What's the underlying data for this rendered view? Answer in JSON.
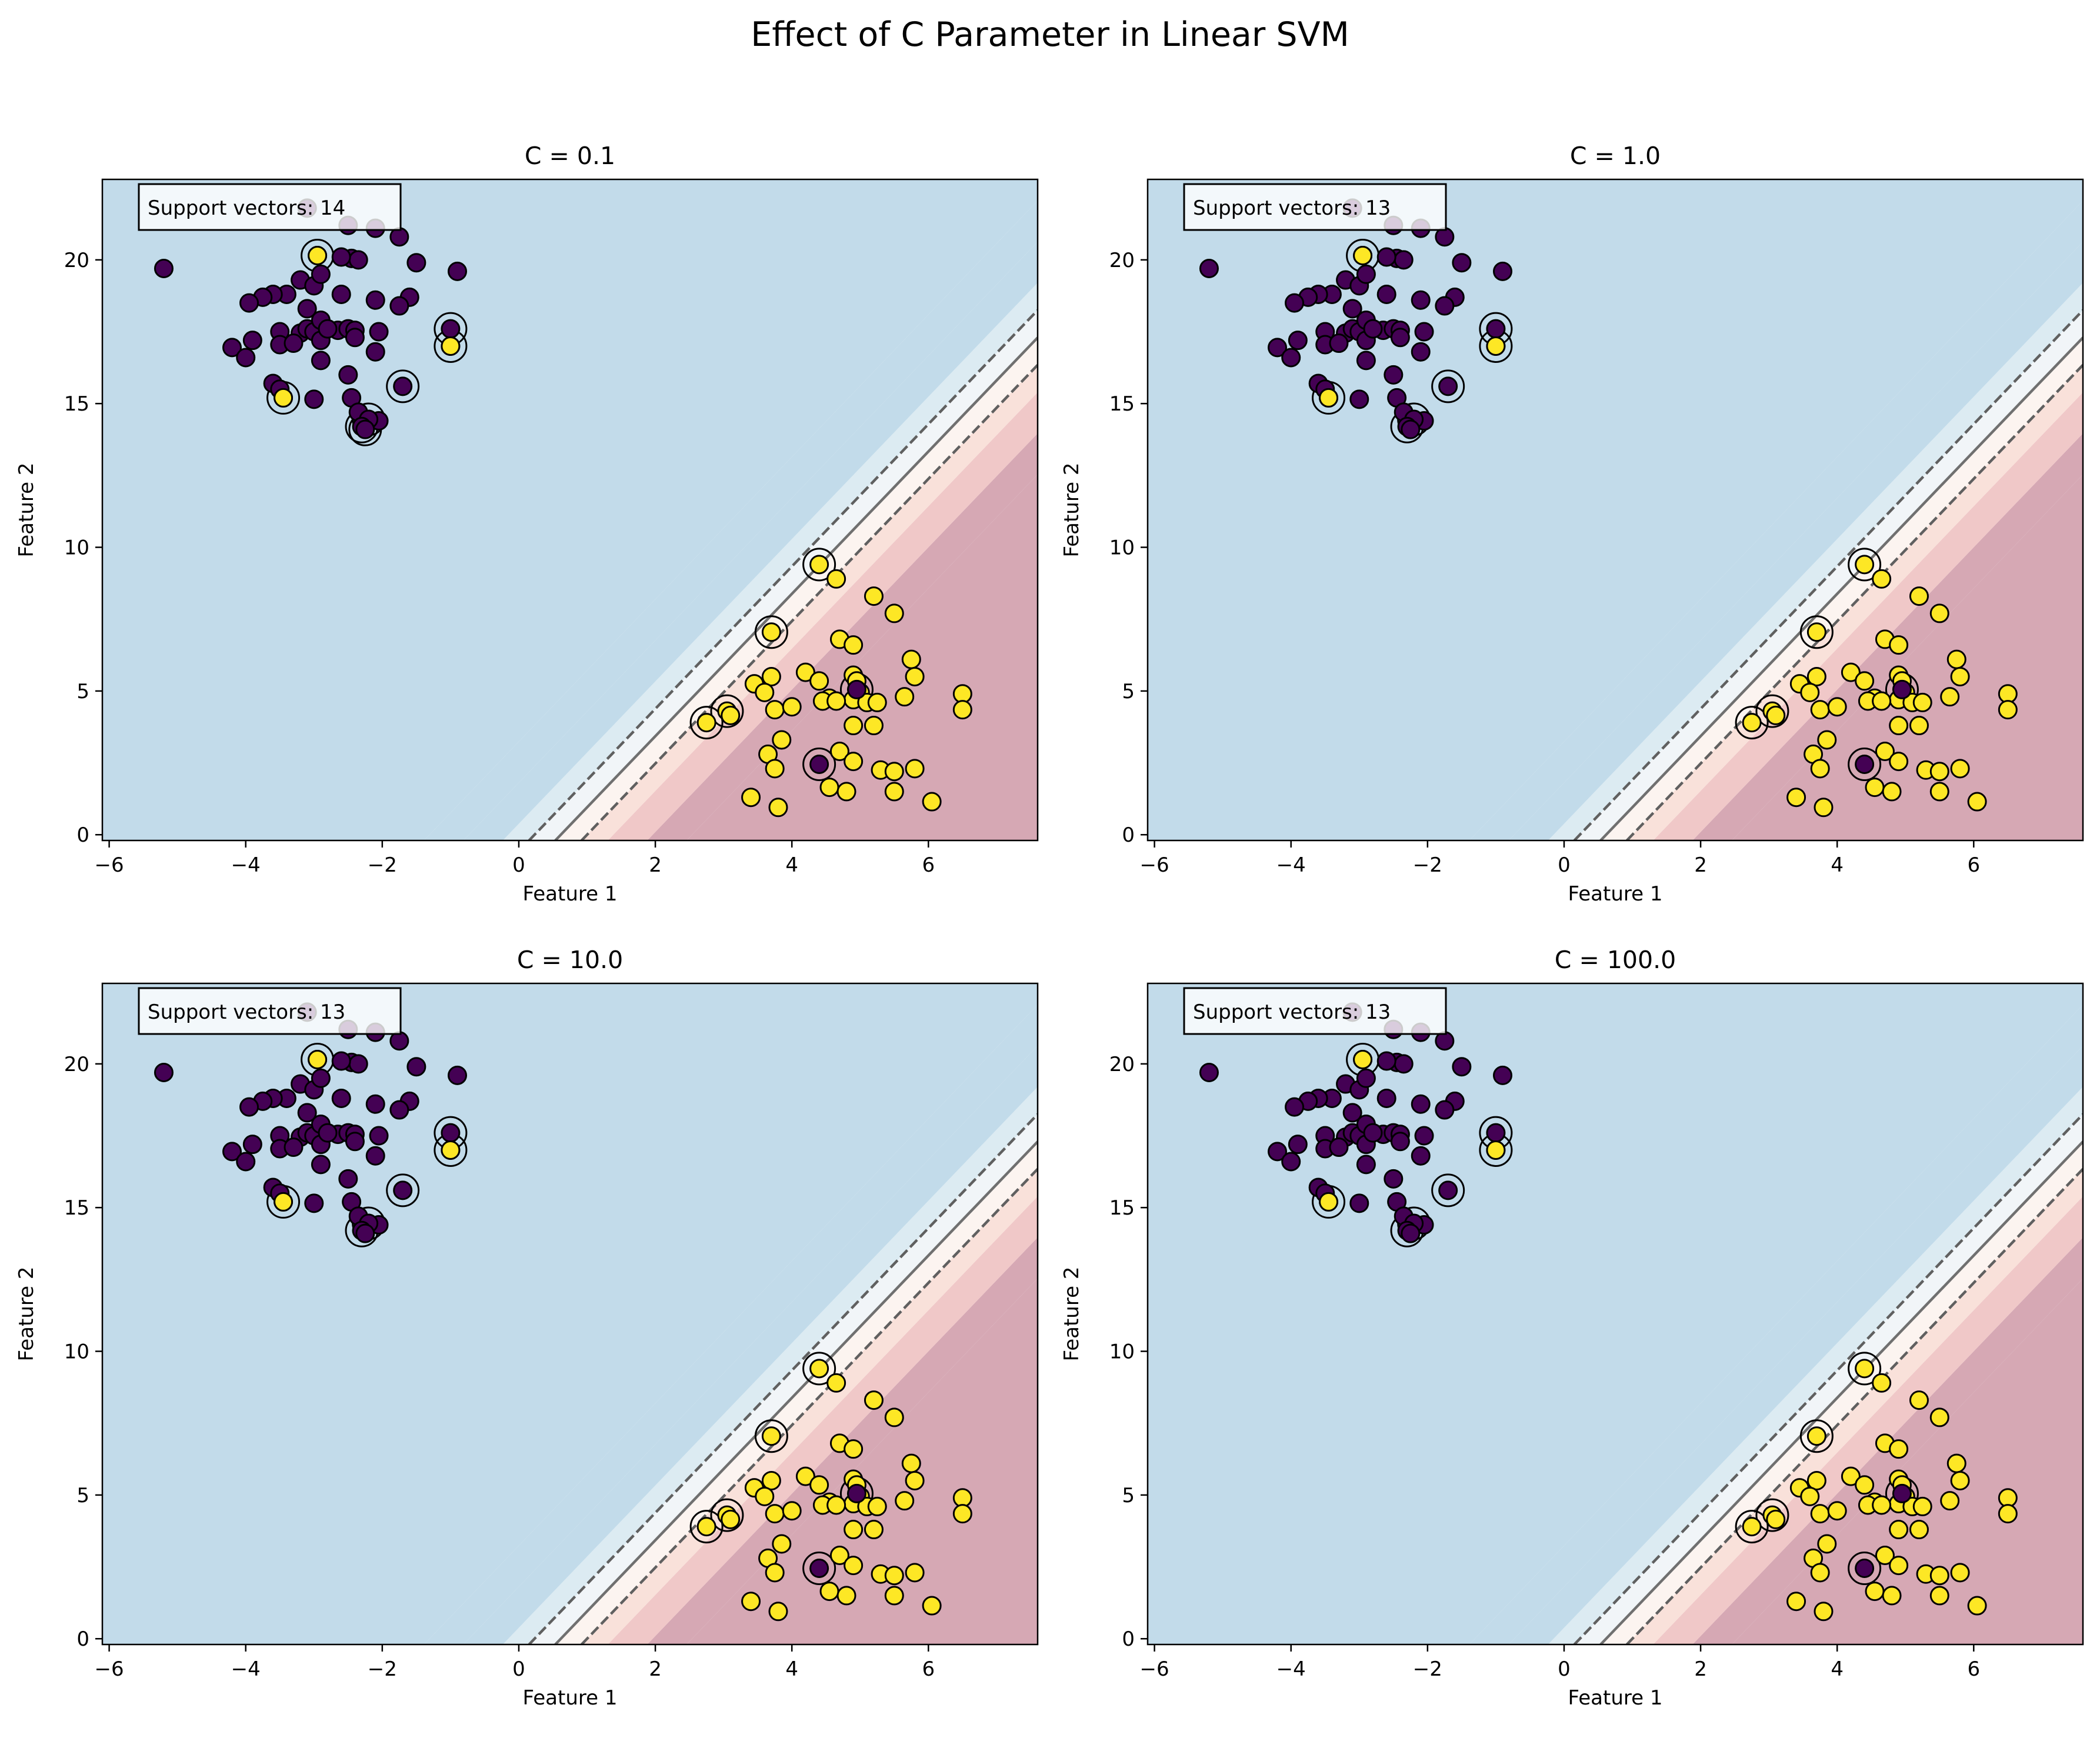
{
  "figure": {
    "title": "Effect of C Parameter in Linear SVM"
  },
  "colors": {
    "class_0": "#440154",
    "class_1": "#fde725",
    "marker_edge": "#000000",
    "boundary_line": "#707070",
    "margin_line": "#606060",
    "band_fills": [
      "#d6a8b4",
      "#f0c8c8",
      "#f9e1da",
      "#fcf4f0",
      "#f1f5f8",
      "#dcebf2",
      "#c2dbea"
    ]
  },
  "chart_data": [
    {
      "type": "scatter",
      "title": "C = 0.1",
      "xlabel": "Feature 1",
      "ylabel": "Feature 2",
      "xlim": [
        -6.1,
        7.6
      ],
      "ylim": [
        -0.2,
        22.8
      ],
      "xticks": [
        -6,
        -4,
        -2,
        0,
        2,
        4,
        6
      ],
      "yticks": [
        0,
        5,
        10,
        15,
        20
      ],
      "annotation": "Support vectors: 14",
      "support_vectors": [
        [
          -2.95,
          20.15
        ],
        [
          -3.45,
          15.2
        ],
        [
          -1.0,
          17.6
        ],
        [
          -1.0,
          17.0
        ],
        [
          -1.7,
          15.6
        ],
        [
          -2.2,
          14.45
        ],
        [
          -2.3,
          14.2
        ],
        [
          -2.25,
          14.1
        ],
        [
          4.4,
          9.4
        ],
        [
          3.7,
          7.05
        ],
        [
          2.75,
          3.9
        ],
        [
          3.05,
          4.3
        ],
        [
          4.4,
          2.45
        ],
        [
          4.95,
          5.05
        ]
      ]
    },
    {
      "type": "scatter",
      "title": "C = 1.0",
      "xlabel": "Feature 1",
      "ylabel": "Feature 2",
      "xlim": [
        -6.1,
        7.6
      ],
      "ylim": [
        -0.2,
        22.8
      ],
      "xticks": [
        -6,
        -4,
        -2,
        0,
        2,
        4,
        6
      ],
      "yticks": [
        0,
        5,
        10,
        15,
        20
      ],
      "annotation": "Support vectors: 13",
      "support_vectors": [
        [
          -2.95,
          20.15
        ],
        [
          -3.45,
          15.2
        ],
        [
          -1.0,
          17.6
        ],
        [
          -1.0,
          17.0
        ],
        [
          -1.7,
          15.6
        ],
        [
          -2.2,
          14.45
        ],
        [
          -2.3,
          14.2
        ],
        [
          4.4,
          9.4
        ],
        [
          3.7,
          7.05
        ],
        [
          2.75,
          3.9
        ],
        [
          3.05,
          4.3
        ],
        [
          4.4,
          2.45
        ],
        [
          4.95,
          5.05
        ]
      ]
    },
    {
      "type": "scatter",
      "title": "C = 10.0",
      "xlabel": "Feature 1",
      "ylabel": "Feature 2",
      "xlim": [
        -6.1,
        7.6
      ],
      "ylim": [
        -0.2,
        22.8
      ],
      "xticks": [
        -6,
        -4,
        -2,
        0,
        2,
        4,
        6
      ],
      "yticks": [
        0,
        5,
        10,
        15,
        20
      ],
      "annotation": "Support vectors: 13",
      "support_vectors": [
        [
          -2.95,
          20.15
        ],
        [
          -3.45,
          15.2
        ],
        [
          -1.0,
          17.6
        ],
        [
          -1.0,
          17.0
        ],
        [
          -1.7,
          15.6
        ],
        [
          -2.2,
          14.45
        ],
        [
          -2.3,
          14.2
        ],
        [
          4.4,
          9.4
        ],
        [
          3.7,
          7.05
        ],
        [
          2.75,
          3.9
        ],
        [
          3.05,
          4.3
        ],
        [
          4.4,
          2.45
        ],
        [
          4.95,
          5.05
        ]
      ]
    },
    {
      "type": "scatter",
      "title": "C = 100.0",
      "xlabel": "Feature 1",
      "ylabel": "Feature 2",
      "xlim": [
        -6.1,
        7.6
      ],
      "ylim": [
        -0.2,
        22.8
      ],
      "xticks": [
        -6,
        -4,
        -2,
        0,
        2,
        4,
        6
      ],
      "yticks": [
        0,
        5,
        10,
        15,
        20
      ],
      "annotation": "Support vectors: 13",
      "support_vectors": [
        [
          -2.95,
          20.15
        ],
        [
          -3.45,
          15.2
        ],
        [
          -1.0,
          17.6
        ],
        [
          -1.0,
          17.0
        ],
        [
          -1.7,
          15.6
        ],
        [
          -2.2,
          14.45
        ],
        [
          -2.3,
          14.2
        ],
        [
          4.4,
          9.4
        ],
        [
          3.7,
          7.05
        ],
        [
          2.75,
          3.9
        ],
        [
          3.05,
          4.3
        ],
        [
          4.4,
          2.45
        ],
        [
          4.95,
          5.05
        ]
      ]
    }
  ],
  "shared_points": {
    "class_0": [
      [
        -5.2,
        19.7
      ],
      [
        -3.1,
        21.8
      ],
      [
        -2.5,
        21.2
      ],
      [
        -2.1,
        21.1
      ],
      [
        -1.75,
        20.8
      ],
      [
        -1.5,
        19.9
      ],
      [
        -0.9,
        19.6
      ],
      [
        -3.2,
        19.3
      ],
      [
        -3.0,
        19.1
      ],
      [
        -3.4,
        18.8
      ],
      [
        -3.6,
        18.8
      ],
      [
        -3.75,
        18.7
      ],
      [
        -3.95,
        18.5
      ],
      [
        -3.1,
        18.3
      ],
      [
        -2.6,
        18.8
      ],
      [
        -2.1,
        18.6
      ],
      [
        -1.6,
        18.7
      ],
      [
        -1.75,
        18.4
      ],
      [
        -2.9,
        19.5
      ],
      [
        -2.45,
        20.05
      ],
      [
        -2.35,
        20.0
      ],
      [
        -2.6,
        20.1
      ],
      [
        -4.2,
        16.95
      ],
      [
        -3.9,
        17.2
      ],
      [
        -4.0,
        16.6
      ],
      [
        -3.5,
        17.5
      ],
      [
        -3.5,
        17.05
      ],
      [
        -3.2,
        17.45
      ],
      [
        -3.3,
        17.1
      ],
      [
        -3.1,
        17.6
      ],
      [
        -3.0,
        17.5
      ],
      [
        -2.9,
        17.2
      ],
      [
        -2.9,
        17.9
      ],
      [
        -2.65,
        17.55
      ],
      [
        -2.5,
        17.6
      ],
      [
        -2.4,
        17.55
      ],
      [
        -2.4,
        17.3
      ],
      [
        -2.8,
        17.6
      ],
      [
        -2.05,
        17.5
      ],
      [
        -2.1,
        16.8
      ],
      [
        -2.9,
        16.5
      ],
      [
        -2.5,
        16.0
      ],
      [
        -3.6,
        15.7
      ],
      [
        -3.5,
        15.5
      ],
      [
        -3.0,
        15.15
      ],
      [
        -2.45,
        15.2
      ],
      [
        -2.35,
        14.7
      ],
      [
        -2.05,
        14.4
      ],
      [
        -1.7,
        15.6
      ],
      [
        -1.0,
        17.6
      ],
      [
        -2.2,
        14.45
      ],
      [
        -2.3,
        14.2
      ],
      [
        -2.25,
        14.1
      ],
      [
        4.4,
        2.45
      ],
      [
        4.95,
        5.05
      ]
    ],
    "class_1": [
      [
        -2.95,
        20.15
      ],
      [
        -3.45,
        15.2
      ],
      [
        -1.0,
        17.0
      ],
      [
        4.4,
        9.4
      ],
      [
        4.65,
        8.9
      ],
      [
        5.2,
        8.3
      ],
      [
        5.5,
        7.7
      ],
      [
        3.7,
        7.05
      ],
      [
        4.7,
        6.8
      ],
      [
        4.9,
        6.6
      ],
      [
        5.75,
        6.1
      ],
      [
        5.8,
        5.5
      ],
      [
        4.2,
        5.65
      ],
      [
        3.45,
        5.25
      ],
      [
        3.7,
        5.5
      ],
      [
        3.6,
        4.95
      ],
      [
        4.4,
        5.35
      ],
      [
        4.9,
        5.55
      ],
      [
        4.95,
        5.35
      ],
      [
        5.0,
        4.95
      ],
      [
        4.9,
        4.7
      ],
      [
        4.55,
        4.75
      ],
      [
        4.45,
        4.65
      ],
      [
        4.65,
        4.65
      ],
      [
        5.1,
        4.6
      ],
      [
        5.25,
        4.6
      ],
      [
        5.65,
        4.8
      ],
      [
        6.5,
        4.9
      ],
      [
        6.5,
        4.35
      ],
      [
        3.75,
        4.35
      ],
      [
        4.0,
        4.45
      ],
      [
        2.75,
        3.9
      ],
      [
        3.05,
        4.3
      ],
      [
        3.1,
        4.15
      ],
      [
        4.9,
        3.8
      ],
      [
        5.2,
        3.8
      ],
      [
        3.85,
        3.3
      ],
      [
        4.7,
        2.9
      ],
      [
        3.65,
        2.8
      ],
      [
        3.75,
        2.3
      ],
      [
        4.9,
        2.55
      ],
      [
        5.3,
        2.25
      ],
      [
        5.5,
        2.2
      ],
      [
        5.8,
        2.3
      ],
      [
        4.55,
        1.65
      ],
      [
        4.8,
        1.5
      ],
      [
        5.5,
        1.5
      ],
      [
        3.4,
        1.3
      ],
      [
        3.8,
        0.95
      ],
      [
        6.05,
        1.15
      ]
    ]
  },
  "decision_function": {
    "w": [
      -2.6,
      1.05
    ],
    "b": 1.6,
    "band_levels": [
      -5,
      -3.5,
      -2,
      -1,
      0,
      1,
      2,
      3.5,
      5
    ]
  }
}
